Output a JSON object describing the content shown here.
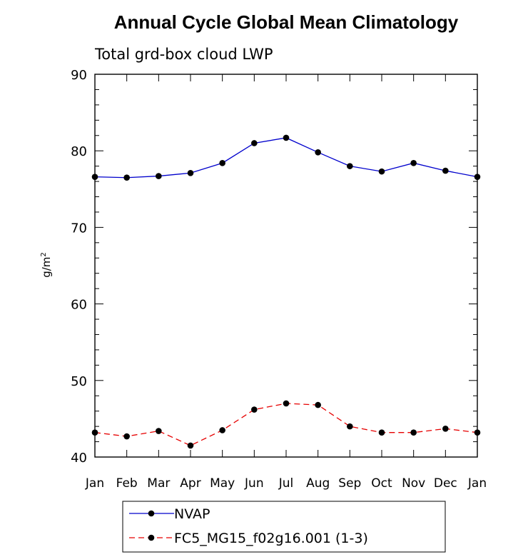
{
  "chart_data": {
    "type": "line",
    "title": "Annual Cycle Global Mean Climatology",
    "subtitle": "Total grd-box cloud LWP",
    "ylabel": "g/m",
    "ylabel_superscript": "2",
    "ylim": [
      40,
      90
    ],
    "yticks": [
      40,
      50,
      60,
      70,
      80,
      90
    ],
    "categories": [
      "Jan",
      "Feb",
      "Mar",
      "Apr",
      "May",
      "Jun",
      "Jul",
      "Aug",
      "Sep",
      "Oct",
      "Nov",
      "Dec",
      "Jan"
    ],
    "series": [
      {
        "name": "NVAP",
        "color": "#0000cc",
        "line_style": "solid",
        "values": [
          76.6,
          76.5,
          76.7,
          77.1,
          78.4,
          81.0,
          81.7,
          79.8,
          78.0,
          77.3,
          78.4,
          77.4,
          76.6
        ]
      },
      {
        "name": "FC5_MG15_f02g16.001 (1-3)",
        "color": "#e60000",
        "line_style": "dashed",
        "values": [
          43.2,
          42.7,
          43.4,
          41.5,
          43.5,
          46.2,
          47.0,
          46.8,
          44.0,
          43.2,
          43.2,
          43.7,
          43.2
        ]
      }
    ],
    "grid": false,
    "legend_position": "bottom-center"
  }
}
